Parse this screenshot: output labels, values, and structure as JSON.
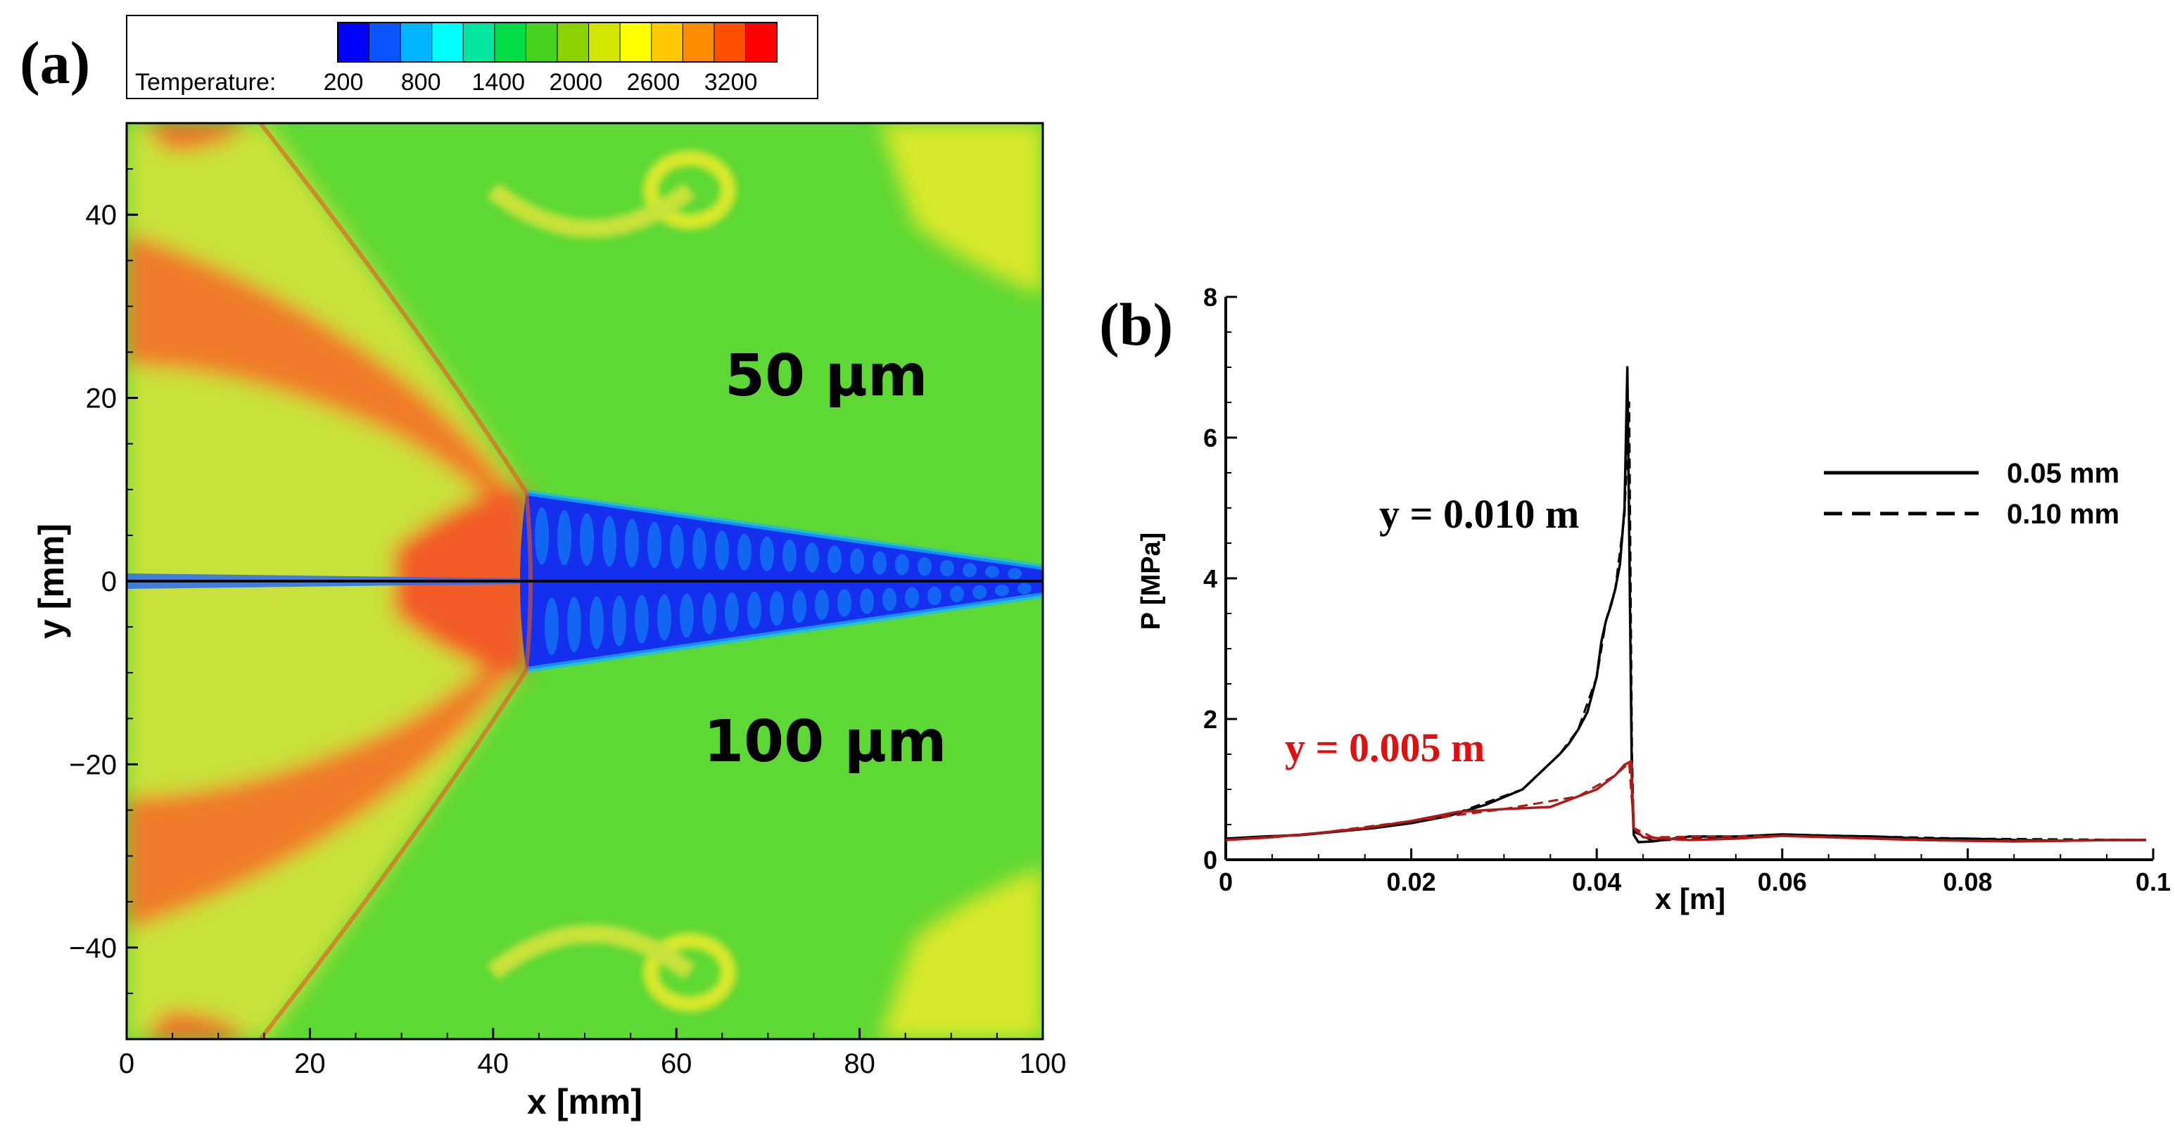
{
  "chart_data": [
    {
      "panel": "(a)",
      "type": "heatmap",
      "title": "",
      "xlabel": "x [mm]",
      "ylabel": "y [mm]",
      "xlim": [
        0,
        100
      ],
      "ylim": [
        -50,
        50
      ],
      "xticks": [
        0,
        20,
        40,
        60,
        80,
        100
      ],
      "yticks": [
        -40,
        -20,
        0,
        20,
        40
      ],
      "colorbar": {
        "label": "Temperature:",
        "range": [
          200,
          3600
        ],
        "tick_values": [
          200,
          800,
          1400,
          2000,
          2600,
          3200
        ],
        "colors": [
          "#0000ff",
          "#0a55ff",
          "#00b4ff",
          "#00ffff",
          "#00e6a0",
          "#00dc46",
          "#46d21e",
          "#8cd200",
          "#d2e600",
          "#ffff00",
          "#ffc800",
          "#ff8c00",
          "#ff5000",
          "#ff0000"
        ]
      },
      "annotations": [
        "50 µm",
        "100 µm"
      ],
      "features": {
        "shock_front_x_mm": 43,
        "low_temperature_region": "blue wedge behind front (x > 43 mm, |y| < 10 mm)",
        "cool_temperature_K": 300,
        "ambient_temperature_K": 1900,
        "hot_layer_temperature_K": 3000
      },
      "colors": {
        "cold": "#0a35f0",
        "ambient": "#5ed834",
        "warm": "#d8e82a",
        "hot": "#f26a2a"
      }
    },
    {
      "panel": "(b)",
      "type": "line",
      "title": "",
      "xlabel": "x [m]",
      "ylabel": "P [MPa]",
      "xlim": [
        0,
        0.1
      ],
      "ylim": [
        0,
        8
      ],
      "xticks": [
        0,
        0.02,
        0.04,
        0.06,
        0.08,
        0.1
      ],
      "xtick_labels": [
        "0",
        "0.02",
        "0.04",
        "0.06",
        "0.08",
        "0.1"
      ],
      "yticks": [
        0,
        2,
        4,
        6,
        8
      ],
      "legend": [
        {
          "label": "0.05 mm",
          "style": "solid"
        },
        {
          "label": "0.10 mm",
          "style": "dashed"
        }
      ],
      "curve_labels": [
        {
          "text": "y = 0.010 m",
          "color": "#000000"
        },
        {
          "text": "y = 0.005 m",
          "color": "#e01010"
        }
      ],
      "series": [
        {
          "name": "y = 0.010 m, 0.05 mm",
          "color": "#000000",
          "style": "solid",
          "x": [
            0,
            0.004,
            0.008,
            0.012,
            0.016,
            0.02,
            0.024,
            0.028,
            0.032,
            0.034,
            0.036,
            0.037,
            0.038,
            0.039,
            0.04,
            0.0405,
            0.041,
            0.0415,
            0.042,
            0.0425,
            0.043,
            0.0433,
            0.0436,
            0.0438,
            0.044,
            0.0445,
            0.046,
            0.05,
            0.055,
            0.06,
            0.065,
            0.07,
            0.075,
            0.08,
            0.085,
            0.09,
            0.095,
            0.1
          ],
          "y": [
            0.3,
            0.33,
            0.35,
            0.4,
            0.45,
            0.52,
            0.62,
            0.78,
            1.0,
            1.25,
            1.5,
            1.65,
            1.85,
            2.1,
            2.6,
            3.1,
            3.4,
            3.6,
            3.85,
            4.2,
            5.0,
            7.0,
            3.5,
            1.0,
            0.35,
            0.25,
            0.26,
            0.33,
            0.33,
            0.36,
            0.34,
            0.33,
            0.3,
            0.3,
            0.28,
            0.27,
            0.28,
            0.28
          ]
        },
        {
          "name": "y = 0.010 m, 0.10 mm",
          "color": "#000000",
          "style": "dashed",
          "x": [
            0,
            0.008,
            0.016,
            0.024,
            0.032,
            0.036,
            0.038,
            0.04,
            0.041,
            0.042,
            0.043,
            0.0435,
            0.0438,
            0.044,
            0.046,
            0.06,
            0.08,
            0.1
          ],
          "y": [
            0.3,
            0.35,
            0.45,
            0.62,
            1.0,
            1.5,
            1.85,
            2.6,
            3.4,
            3.85,
            4.9,
            6.5,
            1.5,
            0.4,
            0.27,
            0.36,
            0.3,
            0.28
          ]
        },
        {
          "name": "y = 0.005 m, 0.05 mm",
          "color": "#b01818",
          "style": "solid",
          "x": [
            0,
            0.005,
            0.01,
            0.015,
            0.02,
            0.025,
            0.03,
            0.035,
            0.038,
            0.04,
            0.042,
            0.043,
            0.0437,
            0.044,
            0.045,
            0.05,
            0.055,
            0.06,
            0.065,
            0.07,
            0.075,
            0.08,
            0.085,
            0.09,
            0.095,
            0.1
          ],
          "y": [
            0.28,
            0.32,
            0.38,
            0.45,
            0.55,
            0.68,
            0.72,
            0.75,
            0.9,
            1.0,
            1.2,
            1.35,
            1.4,
            0.45,
            0.32,
            0.28,
            0.3,
            0.34,
            0.32,
            0.3,
            0.28,
            0.27,
            0.26,
            0.27,
            0.28,
            0.28
          ]
        },
        {
          "name": "y = 0.005 m, 0.10 mm",
          "color": "#b01818",
          "style": "dashed",
          "x": [
            0,
            0.01,
            0.02,
            0.03,
            0.038,
            0.042,
            0.0435,
            0.044,
            0.046,
            0.06,
            0.08,
            0.1
          ],
          "y": [
            0.28,
            0.38,
            0.55,
            0.72,
            0.9,
            1.2,
            1.38,
            0.45,
            0.32,
            0.34,
            0.27,
            0.28
          ]
        }
      ]
    }
  ]
}
